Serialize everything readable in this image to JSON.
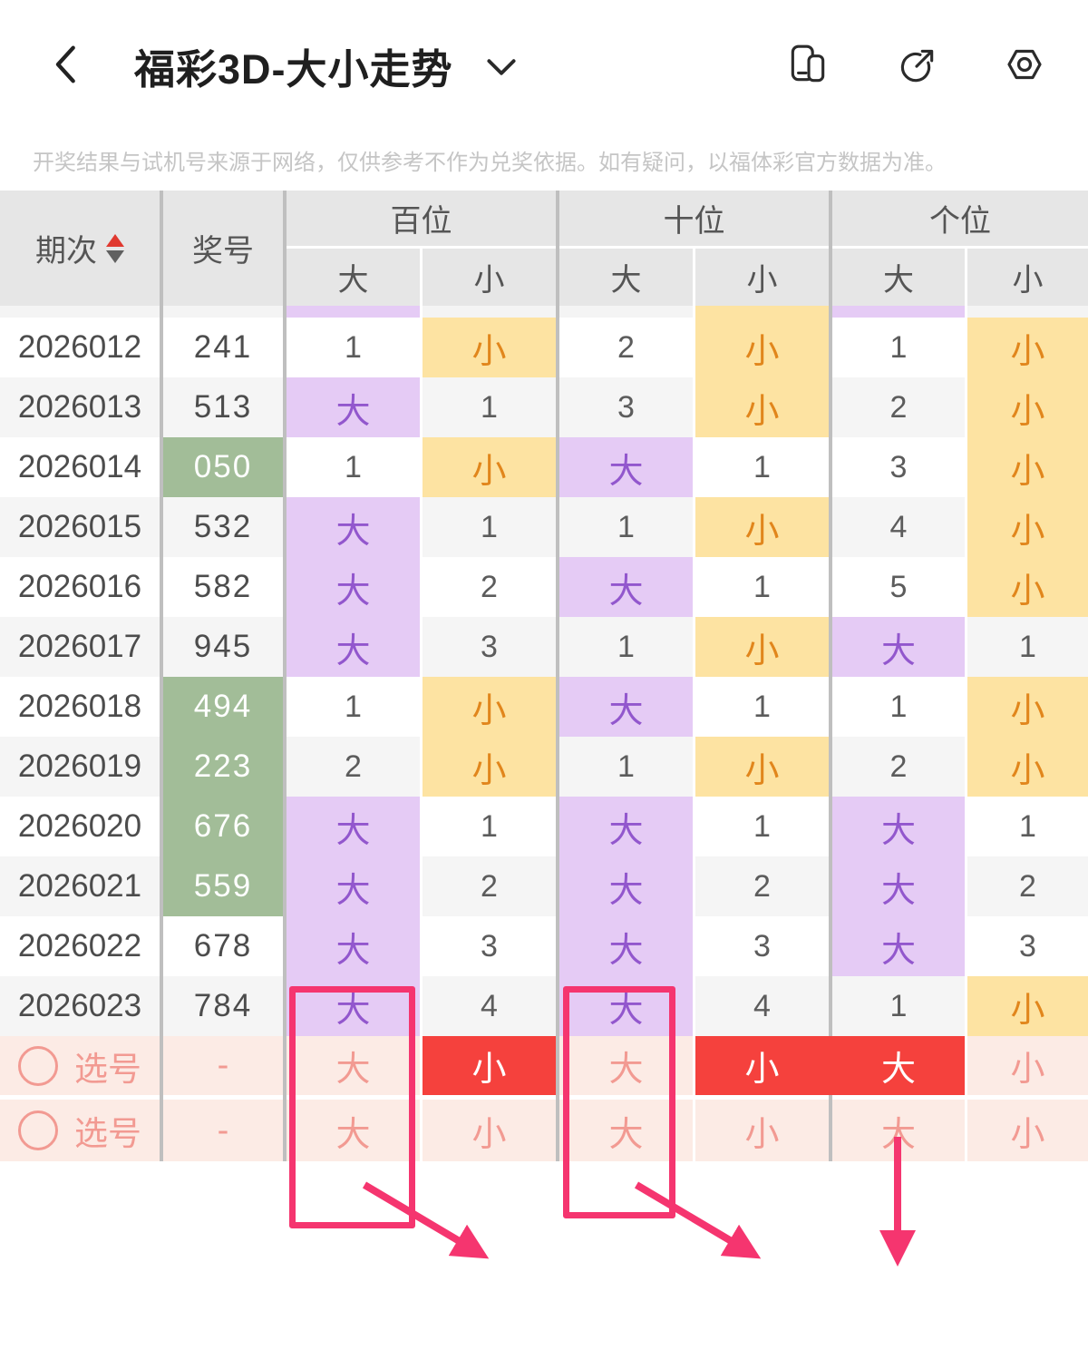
{
  "app": {
    "title": "福彩3D-大小走势",
    "back_icon": "back-chevron",
    "title_dropdown_icon": "chevron-down",
    "action_icons": [
      "floating-window-icon",
      "share-icon",
      "settings-hexagon-icon"
    ]
  },
  "disclaimer": "开奖结果与试机号来源于网络，仅供参考不作为兑奖依据。如有疑问，以福体彩官方数据为准。",
  "table": {
    "period_header": "期次",
    "number_header": "奖号",
    "groups": [
      "百位",
      "十位",
      "个位"
    ],
    "group_keys": [
      "hundreds",
      "tens",
      "units"
    ],
    "sub_headers": [
      "大",
      "小"
    ],
    "sort_icon": "sort-asc-desc",
    "strip": [
      "big",
      "plain",
      "plain",
      "small",
      "big",
      "plain"
    ],
    "rows": [
      {
        "period": "2026012",
        "number": "241",
        "green": false,
        "cells": [
          [
            "1",
            "plain"
          ],
          [
            "小",
            "small"
          ],
          [
            "2",
            "plain"
          ],
          [
            "小",
            "small"
          ],
          [
            "1",
            "plain"
          ],
          [
            "小",
            "small"
          ]
        ]
      },
      {
        "period": "2026013",
        "number": "513",
        "green": false,
        "cells": [
          [
            "大",
            "big"
          ],
          [
            "1",
            "plain"
          ],
          [
            "3",
            "plain"
          ],
          [
            "小",
            "small"
          ],
          [
            "2",
            "plain"
          ],
          [
            "小",
            "small"
          ]
        ]
      },
      {
        "period": "2026014",
        "number": "050",
        "green": true,
        "cells": [
          [
            "1",
            "plain"
          ],
          [
            "小",
            "small"
          ],
          [
            "大",
            "big"
          ],
          [
            "1",
            "plain"
          ],
          [
            "3",
            "plain"
          ],
          [
            "小",
            "small"
          ]
        ]
      },
      {
        "period": "2026015",
        "number": "532",
        "green": false,
        "cells": [
          [
            "大",
            "big"
          ],
          [
            "1",
            "plain"
          ],
          [
            "1",
            "plain"
          ],
          [
            "小",
            "small"
          ],
          [
            "4",
            "plain"
          ],
          [
            "小",
            "small"
          ]
        ]
      },
      {
        "period": "2026016",
        "number": "582",
        "green": false,
        "cells": [
          [
            "大",
            "big"
          ],
          [
            "2",
            "plain"
          ],
          [
            "大",
            "big"
          ],
          [
            "1",
            "plain"
          ],
          [
            "5",
            "plain"
          ],
          [
            "小",
            "small"
          ]
        ]
      },
      {
        "period": "2026017",
        "number": "945",
        "green": false,
        "cells": [
          [
            "大",
            "big"
          ],
          [
            "3",
            "plain"
          ],
          [
            "1",
            "plain"
          ],
          [
            "小",
            "small"
          ],
          [
            "大",
            "big"
          ],
          [
            "1",
            "plain"
          ]
        ]
      },
      {
        "period": "2026018",
        "number": "494",
        "green": true,
        "cells": [
          [
            "1",
            "plain"
          ],
          [
            "小",
            "small"
          ],
          [
            "大",
            "big"
          ],
          [
            "1",
            "plain"
          ],
          [
            "1",
            "plain"
          ],
          [
            "小",
            "small"
          ]
        ]
      },
      {
        "period": "2026019",
        "number": "223",
        "green": true,
        "cells": [
          [
            "2",
            "plain"
          ],
          [
            "小",
            "small"
          ],
          [
            "1",
            "plain"
          ],
          [
            "小",
            "small"
          ],
          [
            "2",
            "plain"
          ],
          [
            "小",
            "small"
          ]
        ]
      },
      {
        "period": "2026020",
        "number": "676",
        "green": true,
        "cells": [
          [
            "大",
            "big"
          ],
          [
            "1",
            "plain"
          ],
          [
            "大",
            "big"
          ],
          [
            "1",
            "plain"
          ],
          [
            "大",
            "big"
          ],
          [
            "1",
            "plain"
          ]
        ]
      },
      {
        "period": "2026021",
        "number": "559",
        "green": true,
        "cells": [
          [
            "大",
            "big"
          ],
          [
            "2",
            "plain"
          ],
          [
            "大",
            "big"
          ],
          [
            "2",
            "plain"
          ],
          [
            "大",
            "big"
          ],
          [
            "2",
            "plain"
          ]
        ]
      },
      {
        "period": "2026022",
        "number": "678",
        "green": false,
        "cells": [
          [
            "大",
            "big"
          ],
          [
            "3",
            "plain"
          ],
          [
            "大",
            "big"
          ],
          [
            "3",
            "plain"
          ],
          [
            "大",
            "big"
          ],
          [
            "3",
            "plain"
          ]
        ]
      },
      {
        "period": "2026023",
        "number": "784",
        "green": false,
        "cells": [
          [
            "大",
            "big"
          ],
          [
            "4",
            "plain"
          ],
          [
            "大",
            "big"
          ],
          [
            "4",
            "plain"
          ],
          [
            "1",
            "plain"
          ],
          [
            "小",
            "small"
          ]
        ]
      }
    ],
    "selection_rows": [
      {
        "label": "选号",
        "number": "-",
        "cells": [
          [
            "大",
            "pink"
          ],
          [
            "小",
            "red"
          ],
          [
            "大",
            "pink"
          ],
          [
            "小",
            "red"
          ],
          [
            "大",
            "red"
          ],
          [
            "小",
            "pink"
          ]
        ]
      },
      {
        "label": "选号",
        "number": "-",
        "cells": [
          [
            "大",
            "pink"
          ],
          [
            "小",
            "pink"
          ],
          [
            "大",
            "pink"
          ],
          [
            "小",
            "pink"
          ],
          [
            "大",
            "pink"
          ],
          [
            "小",
            "pink"
          ]
        ]
      }
    ]
  },
  "colors": {
    "big_bg": "#e5cbf5",
    "big_text": "#9257cd",
    "small_bg": "#fde3a2",
    "small_text": "#e1861c",
    "green_bg": "#a2bd98",
    "selected_red": "#f5413d",
    "highlight_pink": "#f5356f",
    "selection_bg": "#fcebe5",
    "selection_text": "#f29a92",
    "header_bg": "#e6e6e6",
    "sort_up_red": "#e0392f"
  }
}
